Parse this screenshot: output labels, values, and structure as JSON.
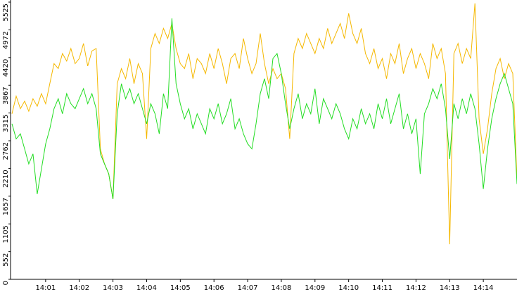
{
  "chart_data": {
    "type": "line",
    "categories": [
      null,
      null,
      null,
      null,
      null,
      null,
      null,
      null,
      "14:01",
      null,
      null,
      null,
      null,
      null,
      null,
      null,
      "14:02",
      null,
      null,
      null,
      null,
      null,
      null,
      null,
      "14:03",
      null,
      null,
      null,
      null,
      null,
      null,
      null,
      "14:04",
      null,
      null,
      null,
      null,
      null,
      null,
      null,
      "14:05",
      null,
      null,
      null,
      null,
      null,
      null,
      null,
      "14:06",
      null,
      null,
      null,
      null,
      null,
      null,
      null,
      "14:07",
      null,
      null,
      null,
      null,
      null,
      null,
      null,
      "14:08",
      null,
      null,
      null,
      null,
      null,
      null,
      null,
      "14:09",
      null,
      null,
      null,
      null,
      null,
      null,
      null,
      "14:10",
      null,
      null,
      null,
      null,
      null,
      null,
      null,
      "14:11",
      null,
      null,
      null,
      null,
      null,
      null,
      null,
      "14:12",
      null,
      null,
      null,
      null,
      null,
      null,
      null,
      "14:13",
      null,
      null,
      null,
      null,
      null,
      null,
      null,
      "14:14",
      null,
      null,
      null,
      null,
      null,
      null,
      null,
      null
    ],
    "series": [
      {
        "color": "#f5b800",
        "values": [
          3300,
          3650,
          3400,
          3550,
          3350,
          3600,
          3450,
          3700,
          3500,
          3900,
          4300,
          4200,
          4500,
          4350,
          4600,
          4300,
          4400,
          4700,
          4250,
          4550,
          4600,
          2600,
          2300,
          2100,
          1600,
          3900,
          4200,
          4000,
          4400,
          3900,
          4300,
          4100,
          2800,
          4600,
          4900,
          4700,
          5000,
          4800,
          5100,
          4600,
          4300,
          4200,
          4500,
          4000,
          4400,
          4300,
          4100,
          4500,
          4200,
          4600,
          4300,
          3900,
          4400,
          4500,
          4200,
          4800,
          4400,
          4100,
          4300,
          4900,
          4300,
          3900,
          4200,
          4000,
          4100,
          3800,
          2800,
          4500,
          4800,
          4600,
          4900,
          4700,
          4500,
          4800,
          4600,
          5000,
          4700,
          4900,
          5100,
          4800,
          5300,
          4900,
          4700,
          5000,
          4500,
          4300,
          4600,
          4200,
          4400,
          4000,
          4500,
          4300,
          4700,
          4100,
          4400,
          4600,
          4200,
          4500,
          4300,
          4000,
          4700,
          4400,
          4600,
          4100,
          700,
          4500,
          4700,
          4300,
          4600,
          4400,
          5500,
          3200,
          2500,
          3000,
          3700,
          4200,
          4400,
          4000,
          4300,
          4100,
          2000
        ]
      },
      {
        "color": "#22dd22",
        "values": [
          3100,
          2800,
          2900,
          2600,
          2300,
          2500,
          1700,
          2200,
          2700,
          3000,
          3400,
          3600,
          3300,
          3700,
          3500,
          3400,
          3600,
          3800,
          3500,
          3700,
          3400,
          2500,
          2300,
          2100,
          1600,
          3300,
          3900,
          3600,
          3800,
          3500,
          3700,
          3400,
          3100,
          3500,
          3300,
          2900,
          3700,
          3400,
          5200,
          3900,
          3500,
          3200,
          3400,
          3000,
          3300,
          3100,
          2900,
          3400,
          3200,
          3500,
          3100,
          3300,
          3600,
          3000,
          3200,
          2900,
          2700,
          2600,
          3100,
          3700,
          4000,
          3600,
          4400,
          4500,
          4100,
          3500,
          3000,
          3400,
          3700,
          3200,
          3500,
          3300,
          3800,
          3100,
          3600,
          3400,
          3200,
          3500,
          3300,
          3000,
          2800,
          3200,
          3000,
          3400,
          3100,
          3300,
          3000,
          3500,
          3200,
          3600,
          3100,
          3400,
          3700,
          3000,
          3300,
          2900,
          3200,
          2100,
          3300,
          3500,
          3800,
          3600,
          3900,
          3400,
          2400,
          3500,
          3200,
          3600,
          3300,
          3700,
          3400,
          2700,
          1800,
          2600,
          3200,
          3600,
          3900,
          4100,
          3800,
          3500,
          1900
        ]
      }
    ],
    "ylim": [
      0,
      5525
    ],
    "yticks": [
      0,
      552,
      1105,
      1657,
      2210,
      2762,
      3315,
      3867,
      4420,
      4972,
      5525
    ]
  }
}
